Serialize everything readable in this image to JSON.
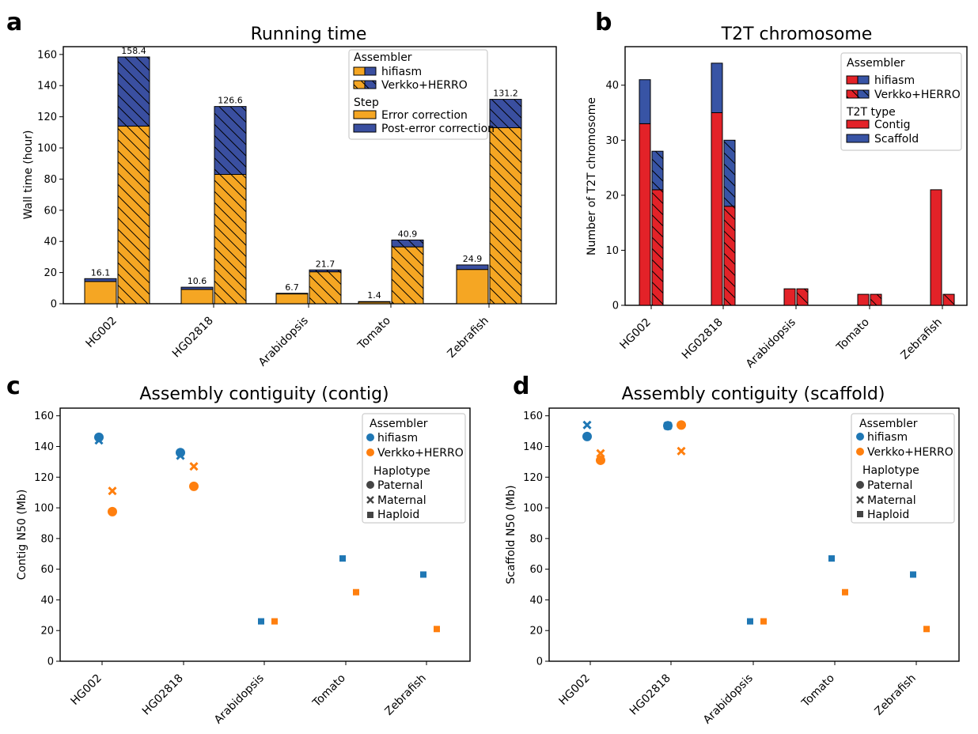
{
  "panels": {
    "a": {
      "letter": "a",
      "title": "Running time",
      "ylabel": "Wall time (hour)"
    },
    "b": {
      "letter": "b",
      "title": "T2T chromosome",
      "ylabel": "Number of T2T chromosome"
    },
    "c": {
      "letter": "c",
      "title": "Assembly contiguity (contig)",
      "ylabel": "Contig N50 (Mb)"
    },
    "d": {
      "letter": "d",
      "title": "Assembly contiguity (scaffold)",
      "ylabel": "Scaffold N50 (Mb)"
    }
  },
  "legends": {
    "a": {
      "assembler_title": "Assembler",
      "hifiasm": "hifiasm",
      "verkko": "Verkko+HERRO",
      "step_title": "Step",
      "step1": "Error correction",
      "step2": "Post-error correction"
    },
    "b": {
      "assembler_title": "Assembler",
      "hifiasm": "hifiasm",
      "verkko": "Verkko+HERRO",
      "type_title": "T2T type",
      "type1": "Contig",
      "type2": "Scaffold"
    },
    "c": {
      "assembler_title": "Assembler",
      "hifiasm": "hifiasm",
      "verkko": "Verkko+HERRO",
      "hap_title": "Haplotype",
      "h1": "Paternal",
      "h2": "Maternal",
      "h3": "Haploid"
    },
    "d": {
      "assembler_title": "Assembler",
      "hifiasm": "hifiasm",
      "verkko": "Verkko+HERRO",
      "hap_title": "Haplotype",
      "h1": "Paternal",
      "h2": "Maternal",
      "h3": "Haploid"
    }
  },
  "colors": {
    "orange": "#f5a623",
    "navy": "#3a4fa0",
    "red": "#e32228",
    "blue": "#3854a5",
    "scatter_blue": "#1f77b4",
    "scatter_orange": "#ff7f0e"
  },
  "chart_data": [
    {
      "id": "a",
      "type": "bar",
      "title": "Running time",
      "xlabel": "",
      "ylabel": "Wall time (hour)",
      "ylim": [
        0,
        165
      ],
      "yticks": [
        0,
        20,
        40,
        60,
        80,
        100,
        120,
        140,
        160
      ],
      "categories": [
        "HG002",
        "HG02818",
        "Arabidopsis",
        "Tomato",
        "Zebrafish"
      ],
      "stacked": true,
      "series": [
        {
          "name": "hifiasm",
          "stack": [
            {
              "step": "Error correction",
              "values": [
                14.3,
                9.2,
                6.3,
                1.1,
                22.0
              ]
            },
            {
              "step": "Post-error correction",
              "values": [
                1.8,
                1.4,
                0.4,
                0.3,
                2.9
              ]
            }
          ],
          "totals": [
            16.1,
            10.6,
            6.7,
            1.4,
            24.9
          ],
          "total_labels": [
            "16.1",
            "10.6",
            "6.7",
            "1.4",
            "24.9"
          ]
        },
        {
          "name": "Verkko+HERRO",
          "stack": [
            {
              "step": "Error correction",
              "values": [
                114,
                83,
                20.5,
                36.5,
                113
              ]
            },
            {
              "step": "Post-error correction",
              "values": [
                44.4,
                43.6,
                1.2,
                4.4,
                18.2
              ]
            }
          ],
          "totals": [
            158.4,
            126.6,
            21.7,
            40.9,
            131.2
          ],
          "total_labels": [
            "158.4",
            "126.6",
            "21.7",
            "40.9",
            "131.2"
          ]
        }
      ],
      "grid": false,
      "legend": "top-right"
    },
    {
      "id": "b",
      "type": "bar",
      "title": "T2T chromosome",
      "xlabel": "",
      "ylabel": "Number of T2T chromosome",
      "ylim": [
        0,
        47
      ],
      "yticks": [
        0,
        10,
        20,
        30,
        40
      ],
      "categories": [
        "HG002",
        "HG02818",
        "Arabidopsis",
        "Tomato",
        "Zebrafish"
      ],
      "stacked": true,
      "series": [
        {
          "name": "hifiasm",
          "stack": [
            {
              "type": "Contig",
              "values": [
                33,
                35,
                3,
                2,
                21
              ]
            },
            {
              "type": "Scaffold",
              "values": [
                8,
                9,
                0,
                0,
                0
              ]
            }
          ]
        },
        {
          "name": "Verkko+HERRO",
          "stack": [
            {
              "type": "Contig",
              "values": [
                21,
                18,
                3,
                2,
                2
              ]
            },
            {
              "type": "Scaffold",
              "values": [
                7,
                12,
                0,
                0,
                0
              ]
            }
          ]
        }
      ],
      "grid": false,
      "legend": "top-right"
    },
    {
      "id": "c",
      "type": "scatter",
      "title": "Assembly contiguity (contig)",
      "xlabel": "",
      "ylabel": "Contig N50 (Mb)",
      "ylim": [
        0,
        165
      ],
      "yticks": [
        0,
        20,
        40,
        60,
        80,
        100,
        120,
        140,
        160
      ],
      "categories": [
        "HG002",
        "HG02818",
        "Arabidopsis",
        "Tomato",
        "Zebrafish"
      ],
      "series": [
        {
          "name": "hifiasm",
          "points": [
            {
              "cat": 0,
              "hap": "Paternal",
              "y": 146
            },
            {
              "cat": 0,
              "hap": "Maternal",
              "y": 144
            },
            {
              "cat": 1,
              "hap": "Paternal",
              "y": 136
            },
            {
              "cat": 1,
              "hap": "Maternal",
              "y": 134
            },
            {
              "cat": 2,
              "hap": "Haploid",
              "y": 26
            },
            {
              "cat": 3,
              "hap": "Haploid",
              "y": 67
            },
            {
              "cat": 4,
              "hap": "Haploid",
              "y": 56.5
            }
          ]
        },
        {
          "name": "Verkko+HERRO",
          "points": [
            {
              "cat": 0,
              "hap": "Paternal",
              "y": 97.5
            },
            {
              "cat": 0,
              "hap": "Maternal",
              "y": 111
            },
            {
              "cat": 1,
              "hap": "Paternal",
              "y": 114
            },
            {
              "cat": 1,
              "hap": "Maternal",
              "y": 127
            },
            {
              "cat": 2,
              "hap": "Haploid",
              "y": 26
            },
            {
              "cat": 3,
              "hap": "Haploid",
              "y": 45
            },
            {
              "cat": 4,
              "hap": "Haploid",
              "y": 21
            }
          ]
        }
      ],
      "grid": false,
      "legend": "top-right"
    },
    {
      "id": "d",
      "type": "scatter",
      "title": "Assembly contiguity (scaffold)",
      "xlabel": "",
      "ylabel": "Scaffold N50 (Mb)",
      "ylim": [
        0,
        165
      ],
      "yticks": [
        0,
        20,
        40,
        60,
        80,
        100,
        120,
        140,
        160
      ],
      "categories": [
        "HG002",
        "HG02818",
        "Arabidopsis",
        "Tomato",
        "Zebrafish"
      ],
      "series": [
        {
          "name": "hifiasm",
          "points": [
            {
              "cat": 0,
              "hap": "Paternal",
              "y": 146.5
            },
            {
              "cat": 0,
              "hap": "Maternal",
              "y": 154
            },
            {
              "cat": 1,
              "hap": "Paternal",
              "y": 153.5
            },
            {
              "cat": 1,
              "hap": "Maternal",
              "y": 153.5
            },
            {
              "cat": 2,
              "hap": "Haploid",
              "y": 26
            },
            {
              "cat": 3,
              "hap": "Haploid",
              "y": 67
            },
            {
              "cat": 4,
              "hap": "Haploid",
              "y": 56.5
            }
          ]
        },
        {
          "name": "Verkko+HERRO",
          "points": [
            {
              "cat": 0,
              "hap": "Paternal",
              "y": 131
            },
            {
              "cat": 0,
              "hap": "Maternal",
              "y": 135.5
            },
            {
              "cat": 1,
              "hap": "Paternal",
              "y": 154
            },
            {
              "cat": 1,
              "hap": "Maternal",
              "y": 137
            },
            {
              "cat": 2,
              "hap": "Haploid",
              "y": 26
            },
            {
              "cat": 3,
              "hap": "Haploid",
              "y": 45
            },
            {
              "cat": 4,
              "hap": "Haploid",
              "y": 21
            }
          ]
        }
      ],
      "grid": false,
      "legend": "top-right"
    }
  ]
}
